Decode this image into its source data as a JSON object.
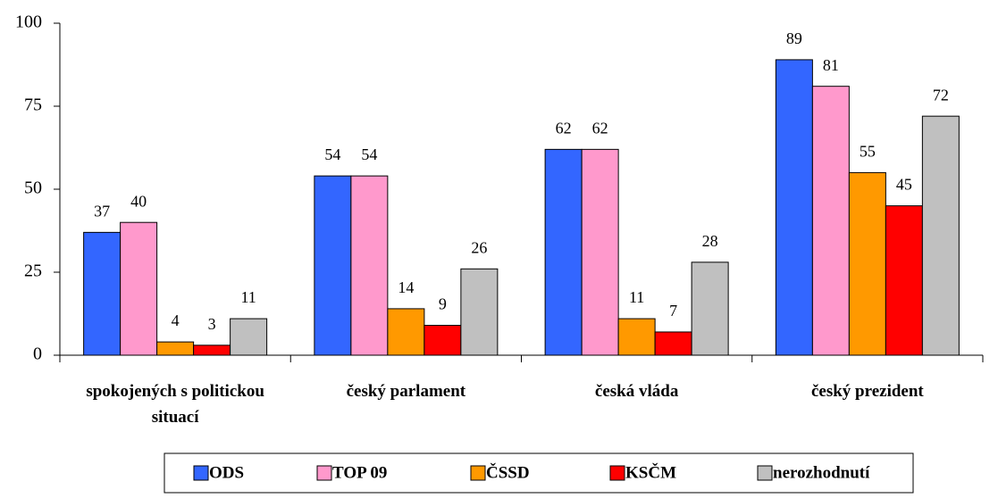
{
  "chart_data": {
    "type": "bar",
    "categories": [
      "spokojených s politickou situací",
      "český parlament",
      "česká vláda",
      "český prezident"
    ],
    "series": [
      {
        "name": "ODS",
        "color": "#3366ff",
        "values": [
          37,
          54,
          62,
          89
        ]
      },
      {
        "name": "TOP 09",
        "color": "#ff99cc",
        "values": [
          40,
          54,
          62,
          81
        ]
      },
      {
        "name": "ČSSD",
        "color": "#ff9900",
        "values": [
          4,
          14,
          11,
          55
        ]
      },
      {
        "name": "KSČM",
        "color": "#ff0000",
        "values": [
          3,
          9,
          7,
          45
        ]
      },
      {
        "name": "nerozhodnutí",
        "color": "#c0c0c0",
        "values": [
          11,
          26,
          28,
          72
        ]
      }
    ],
    "ylim": [
      0,
      100
    ],
    "yticks": [
      0,
      25,
      50,
      75,
      100
    ],
    "grid": false,
    "legend": "bottom"
  }
}
